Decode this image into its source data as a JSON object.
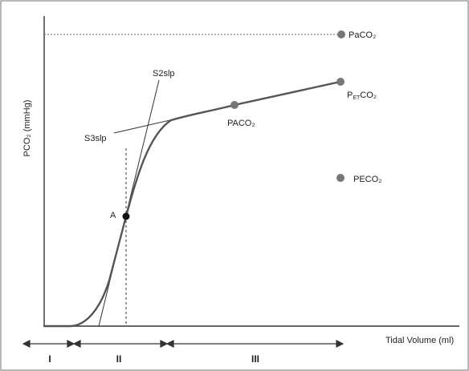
{
  "diagram": {
    "axes": {
      "y_label": "PCO₂ (mmHg)",
      "x_label": "Tidal Volume (ml)"
    },
    "points": {
      "paco2_arterial": "PaCO₂",
      "pet_co2": "PETCO₂",
      "pet_co2_prefix": "P",
      "pet_co2_sub": "ET",
      "pet_co2_suffix": "CO₂",
      "paco2_alveolar": "PACO₂",
      "peco2": "PECO₂",
      "point_a": "A"
    },
    "slopes": {
      "phase2": "S2slp",
      "phase3": "S3slp"
    },
    "phases": [
      "I",
      "II",
      "III"
    ],
    "colors": {
      "curve": "#555555",
      "dot_gray": "#777777",
      "dot_black": "#111111",
      "line": "#333333"
    }
  }
}
